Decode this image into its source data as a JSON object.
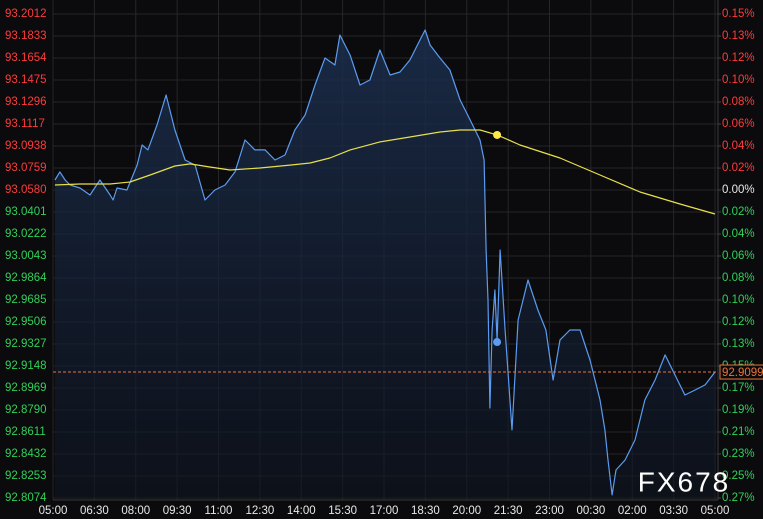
{
  "chart_data": {
    "type": "line",
    "watermark": "FX678",
    "xlim": [
      0,
      24
    ],
    "xticks": [
      {
        "value": 0,
        "label": "05:00"
      },
      {
        "value": 1.5,
        "label": "06:30"
      },
      {
        "value": 3,
        "label": "08:00"
      },
      {
        "value": 4.5,
        "label": "09:30"
      },
      {
        "value": 6,
        "label": "11:00"
      },
      {
        "value": 7.5,
        "label": "12:30"
      },
      {
        "value": 9,
        "label": "14:00"
      },
      {
        "value": 10.5,
        "label": "15:30"
      },
      {
        "value": 12,
        "label": "17:00"
      },
      {
        "value": 13.5,
        "label": "18:30"
      },
      {
        "value": 15,
        "label": "20:00"
      },
      {
        "value": 16.5,
        "label": "21:30"
      },
      {
        "value": 18,
        "label": "23:00"
      },
      {
        "value": 19.5,
        "label": "00:30"
      },
      {
        "value": 21,
        "label": "02:00"
      },
      {
        "value": 22.5,
        "label": "03:30"
      },
      {
        "value": 24,
        "label": "05:00"
      }
    ],
    "ylim": [
      92.8074,
      93.2012
    ],
    "yticks": [
      93.2012,
      93.1833,
      93.1654,
      93.1475,
      93.1296,
      93.1117,
      93.0938,
      93.0759,
      {
        "value": 93.058,
        "label": "93.0580"
      },
      93.0401,
      93.0222,
      93.0043,
      92.9864,
      92.9685,
      92.9506,
      92.9327,
      92.9148,
      92.8969,
      {
        "value": 92.879,
        "label": "92.8790"
      },
      92.8611,
      92.8432,
      92.8253,
      92.8074
    ],
    "y2lim": [
      -0.2693,
      0.1539
    ],
    "y2ticks": [
      {
        "value": 0.1539,
        "label": "0.15%"
      },
      {
        "value": 0.1346,
        "label": "0.13%"
      },
      {
        "value": 0.1154,
        "label": "0.12%"
      },
      {
        "value": 0.0962,
        "label": "0.10%"
      },
      {
        "value": 0.0769,
        "label": "0.08%"
      },
      {
        "value": 0.0577,
        "label": "0.06%"
      },
      {
        "value": 0.0385,
        "label": "0.04%"
      },
      {
        "value": 0.0192,
        "label": "0.02%"
      },
      {
        "value": 0,
        "label": "0.00%"
      },
      {
        "value": -0.0192,
        "label": "0.02%"
      },
      {
        "value": -0.0385,
        "label": "0.04%"
      },
      {
        "value": -0.0577,
        "label": "0.06%"
      },
      {
        "value": -0.0769,
        "label": "0.08%"
      },
      {
        "value": -0.0962,
        "label": "0.10%"
      },
      {
        "value": -0.1154,
        "label": "0.12%"
      },
      {
        "value": -0.1346,
        "label": "0.13%"
      },
      {
        "value": -0.1539,
        "label": "0.15%"
      },
      {
        "value": -0.1731,
        "label": "0.17%"
      },
      {
        "value": -0.1923,
        "label": "0.19%"
      },
      {
        "value": -0.2116,
        "label": "0.21%"
      },
      {
        "value": -0.2308,
        "label": "0.23%"
      },
      {
        "value": -0.25,
        "label": "0.25%"
      },
      {
        "value": -0.2693,
        "label": "0.27%"
      }
    ],
    "up_color": "#ff3b3b",
    "down_color": "#2fd15a",
    "flat_color": "#e8e8e8",
    "grid": true,
    "series": [
      {
        "color": "#5b9bf0",
        "area": true,
        "x": [
          0.07,
          0.25,
          0.44,
          0.62,
          0.98,
          1.34,
          1.7,
          2.07,
          2.18,
          2.32,
          2.68,
          3.05,
          3.23,
          3.44,
          3.77,
          4.1,
          4.42,
          4.79,
          5.15,
          5.51,
          5.87,
          6.24,
          6.6,
          6.96,
          7.32,
          7.69,
          8.05,
          8.41,
          8.77,
          9.14,
          9.5,
          9.86,
          10.22,
          10.4,
          10.77,
          11.13,
          11.49,
          11.85,
          12.22,
          12.58,
          12.94,
          13.3,
          13.49,
          13.67,
          14.03,
          14.39,
          14.76,
          15.12,
          15.48,
          15.63,
          15.7,
          15.77,
          15.84,
          15.92,
          16.02,
          16.1,
          16.21,
          16.39,
          16.64,
          16.86,
          17.22,
          17.58,
          17.87,
          18.13,
          18.38,
          18.74,
          19.11,
          19.47,
          19.83,
          20.01,
          20.12,
          20.27,
          20.41,
          20.74,
          21.1,
          21.46,
          21.83,
          22.19,
          22.55,
          22.91,
          23.28,
          23.64,
          24
        ],
        "values": [
          93.0661,
          93.0727,
          93.0661,
          93.0621,
          93.0596,
          93.0539,
          93.0661,
          93.0539,
          93.0499,
          93.0596,
          93.058,
          93.0783,
          93.0946,
          93.0906,
          93.1109,
          93.1353,
          93.1068,
          93.0824,
          93.0783,
          93.0499,
          93.058,
          93.0621,
          93.0727,
          93.0987,
          93.0906,
          93.0906,
          93.0824,
          93.0865,
          93.1068,
          93.119,
          93.1434,
          93.1654,
          93.1597,
          93.1841,
          93.1678,
          93.1434,
          93.1475,
          93.1719,
          93.1516,
          93.154,
          93.1638,
          93.18,
          93.1882,
          93.176,
          93.1654,
          93.1556,
          93.1312,
          93.115,
          93.0987,
          93.0824,
          93.0092,
          92.9685,
          92.8806,
          92.9441,
          92.9766,
          92.936,
          93.0092,
          92.9441,
          92.8628,
          92.9522,
          92.9848,
          92.9604,
          92.9441,
          92.9034,
          92.936,
          92.9441,
          92.9441,
          92.9197,
          92.8872,
          92.8628,
          92.8383,
          92.8099,
          92.8302,
          92.8383,
          92.8546,
          92.8872,
          92.9034,
          92.9238,
          92.9075,
          92.8912,
          92.8953,
          92.8994,
          92.9099
        ]
      },
      {
        "color": "#e6e04a",
        "area": false,
        "x": [
          0.07,
          0.98,
          2.07,
          2.79,
          3.52,
          4.42,
          4.97,
          5.69,
          6.42,
          7.5,
          8.59,
          9.32,
          10.04,
          10.77,
          11.85,
          12.94,
          14.03,
          14.76,
          15.48,
          16.1,
          16.93,
          18.38,
          19.83,
          21.28,
          22.73,
          24
        ],
        "values": [
          93.0621,
          93.0629,
          93.0629,
          93.0645,
          93.0702,
          93.0775,
          93.0792,
          93.0767,
          93.0743,
          93.0759,
          93.0783,
          93.08,
          93.084,
          93.0906,
          93.0971,
          93.1011,
          93.1052,
          93.1068,
          93.1068,
          93.1028,
          93.0946,
          93.084,
          93.0702,
          93.0564,
          93.0466,
          93.0385
        ]
      }
    ],
    "markers": [
      {
        "x": 16.1,
        "y": 93.1028,
        "color": "#ffe84a"
      },
      {
        "x": 16.1,
        "y": 92.9343,
        "color": "#5b9bf0"
      }
    ],
    "last_price": 92.9099,
    "last_color": "#e8743b"
  }
}
